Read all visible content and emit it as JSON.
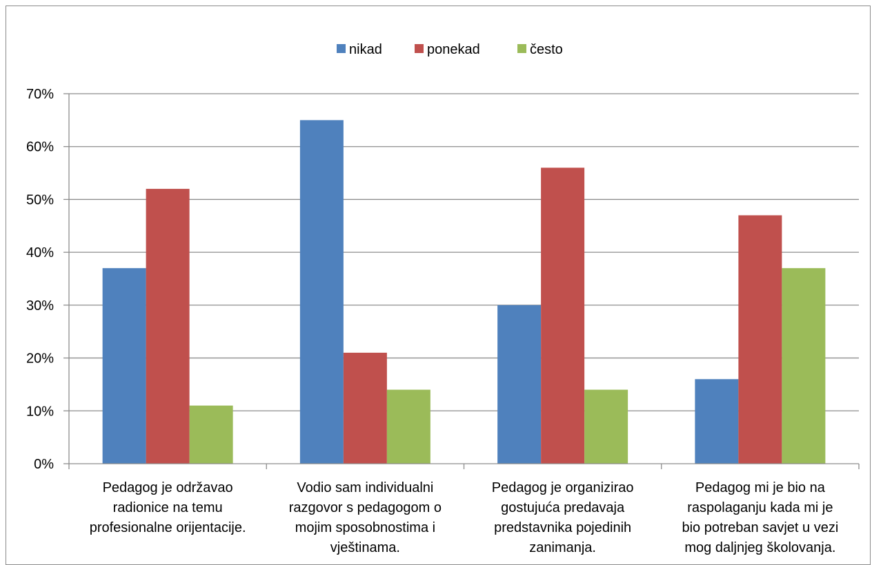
{
  "chart_data": {
    "type": "bar",
    "categories": [
      [
        "Pedagog je održavao",
        "radionice na temu",
        "profesionalne orijentacije."
      ],
      [
        "Vodio sam individualni",
        "razgovor s pedagogom o",
        "mojim sposobnostima i",
        "vještinama."
      ],
      [
        "Pedagog je organizirao",
        "gostujuća predavaja",
        "predstavnika pojedinih",
        "zanimanja."
      ],
      [
        "Pedagog mi je bio na",
        "raspolaganju kada mi je",
        "bio potreban savjet u vezi",
        "mog daljnjeg školovanja."
      ]
    ],
    "series": [
      {
        "name": "nikad",
        "color": "#4f81bd",
        "values": [
          37,
          65,
          30,
          16
        ]
      },
      {
        "name": "ponekad",
        "color": "#c0504d",
        "values": [
          52,
          21,
          56,
          47
        ]
      },
      {
        "name": "često",
        "color": "#9bbb59",
        "values": [
          11,
          14,
          14,
          37
        ]
      }
    ],
    "yticks": [
      "0%",
      "10%",
      "20%",
      "30%",
      "40%",
      "50%",
      "60%",
      "70%"
    ],
    "ylim": [
      0,
      70
    ],
    "grid": true,
    "legend_position": "top-center"
  }
}
